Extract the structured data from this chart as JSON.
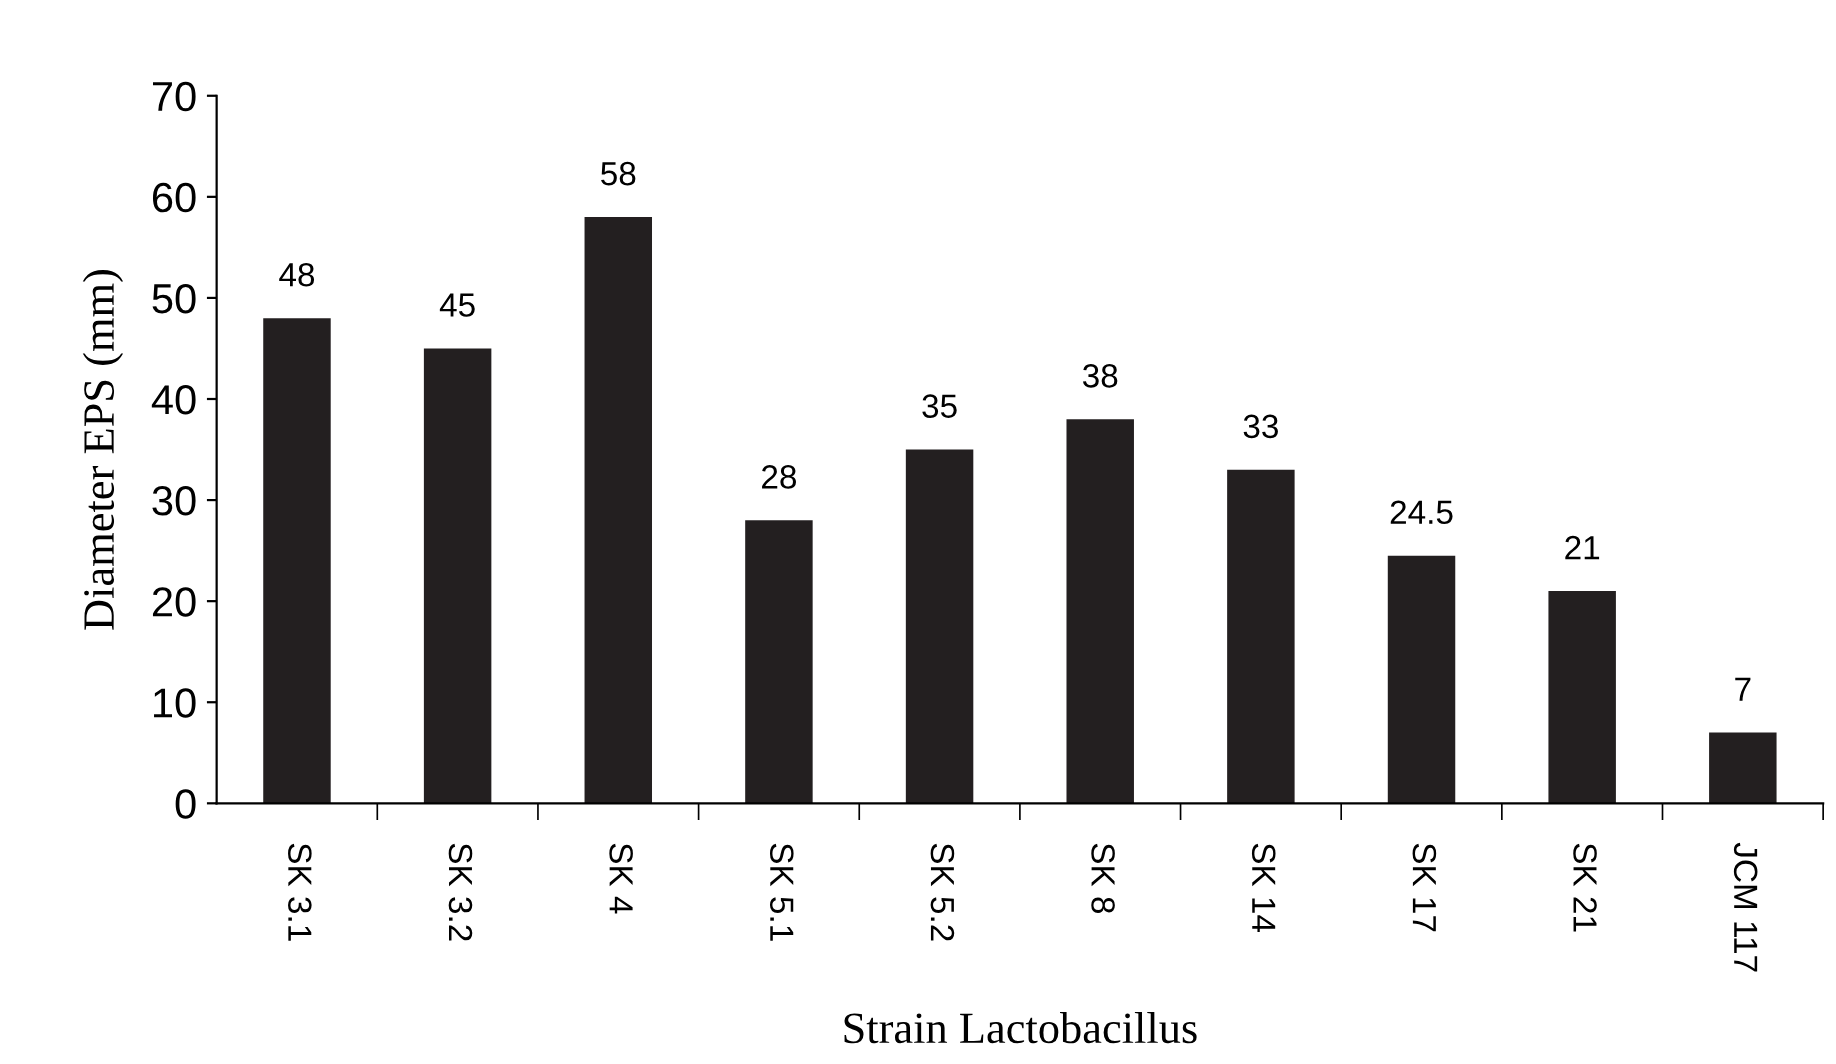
{
  "chart_data": {
    "type": "bar",
    "xlabel": "Strain Lactobacillus",
    "ylabel": "Diameter EPS (mm)",
    "categories": [
      "SK 3.1",
      "SK 3.2",
      "SK 4",
      "SK 5.1",
      "SK 5.2",
      "SK 8",
      "SK 14",
      "SK 17",
      "SK 21",
      "JCM 117"
    ],
    "values": [
      48,
      45,
      58,
      28,
      35,
      38,
      33,
      24.5,
      21,
      7
    ],
    "color": "#231f20",
    "ylim": [
      0,
      70
    ],
    "yticks": [
      0,
      10,
      20,
      30,
      40,
      50,
      60,
      70
    ],
    "grid": false,
    "data_labels": true
  }
}
